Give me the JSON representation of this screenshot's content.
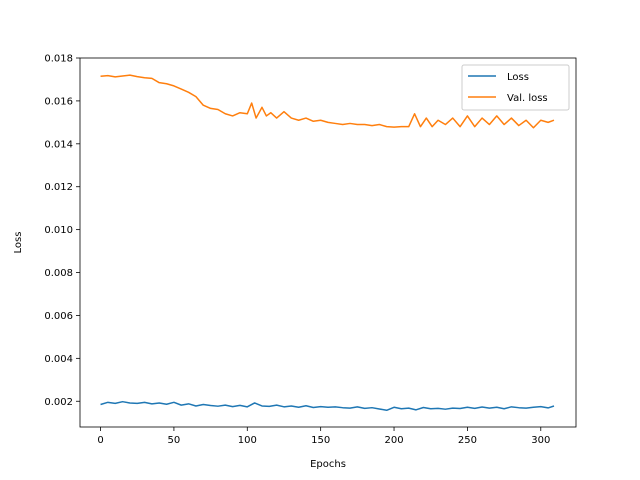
{
  "chart_data": {
    "type": "line",
    "xlabel": "Epochs",
    "ylabel": "Loss",
    "xlim": [
      -14,
      324
    ],
    "ylim": [
      0.0008,
      0.018
    ],
    "xticks": [
      0,
      50,
      100,
      150,
      200,
      250,
      300
    ],
    "yticks": [
      0.002,
      0.004,
      0.006,
      0.008,
      0.01,
      0.012,
      0.014,
      0.016,
      0.018
    ],
    "ytick_labels": [
      "0.002",
      "0.004",
      "0.006",
      "0.008",
      "0.010",
      "0.012",
      "0.014",
      "0.016",
      "0.018"
    ],
    "grid": false,
    "legend_position": "top-right",
    "series": [
      {
        "name": "Loss",
        "color": "#1f77b4",
        "x": [
          0,
          5,
          10,
          15,
          20,
          25,
          30,
          35,
          40,
          45,
          50,
          55,
          60,
          65,
          70,
          75,
          80,
          85,
          90,
          95,
          100,
          105,
          110,
          115,
          120,
          125,
          130,
          135,
          140,
          145,
          150,
          155,
          160,
          165,
          170,
          175,
          180,
          185,
          190,
          195,
          200,
          205,
          210,
          215,
          220,
          225,
          230,
          235,
          240,
          245,
          250,
          255,
          260,
          265,
          270,
          275,
          280,
          285,
          290,
          295,
          300,
          305,
          309
        ],
        "values": [
          0.00185,
          0.00195,
          0.0019,
          0.00198,
          0.00192,
          0.0019,
          0.00195,
          0.00188,
          0.00192,
          0.00186,
          0.00195,
          0.00182,
          0.00188,
          0.00178,
          0.00185,
          0.0018,
          0.00177,
          0.00182,
          0.00175,
          0.00181,
          0.00174,
          0.00192,
          0.00178,
          0.00176,
          0.00182,
          0.00174,
          0.00178,
          0.00172,
          0.00179,
          0.00171,
          0.00175,
          0.00172,
          0.00174,
          0.0017,
          0.00168,
          0.00174,
          0.00167,
          0.0017,
          0.00164,
          0.00158,
          0.00172,
          0.00165,
          0.00168,
          0.0016,
          0.00171,
          0.00165,
          0.00167,
          0.00163,
          0.00168,
          0.00166,
          0.00172,
          0.00167,
          0.00173,
          0.00168,
          0.00172,
          0.00165,
          0.00174,
          0.0017,
          0.00168,
          0.00172,
          0.00175,
          0.00169,
          0.00178
        ]
      },
      {
        "name": "Val. loss",
        "color": "#ff7f0e",
        "x": [
          0,
          5,
          10,
          15,
          20,
          25,
          30,
          35,
          40,
          45,
          50,
          55,
          60,
          65,
          70,
          75,
          80,
          85,
          90,
          95,
          100,
          103,
          106,
          110,
          113,
          116,
          120,
          125,
          130,
          135,
          140,
          145,
          150,
          155,
          160,
          165,
          170,
          175,
          180,
          185,
          190,
          195,
          200,
          205,
          210,
          214,
          218,
          222,
          226,
          230,
          235,
          240,
          245,
          250,
          255,
          260,
          265,
          270,
          275,
          280,
          285,
          290,
          295,
          300,
          305,
          309
        ],
        "values": [
          0.01715,
          0.01718,
          0.01712,
          0.01716,
          0.0172,
          0.01713,
          0.01708,
          0.01705,
          0.01685,
          0.0168,
          0.0167,
          0.01655,
          0.0164,
          0.0162,
          0.0158,
          0.01565,
          0.0156,
          0.0154,
          0.0153,
          0.01545,
          0.0154,
          0.0159,
          0.0152,
          0.0157,
          0.0153,
          0.01545,
          0.0152,
          0.0155,
          0.0152,
          0.0151,
          0.0152,
          0.01505,
          0.0151,
          0.015,
          0.01495,
          0.0149,
          0.01495,
          0.0149,
          0.0149,
          0.01485,
          0.0149,
          0.0148,
          0.01478,
          0.0148,
          0.0148,
          0.0154,
          0.0148,
          0.0152,
          0.0148,
          0.0151,
          0.0149,
          0.0152,
          0.0148,
          0.0153,
          0.0148,
          0.0152,
          0.0149,
          0.0153,
          0.0149,
          0.0152,
          0.01485,
          0.0151,
          0.01475,
          0.0151,
          0.015,
          0.0151
        ]
      }
    ]
  }
}
